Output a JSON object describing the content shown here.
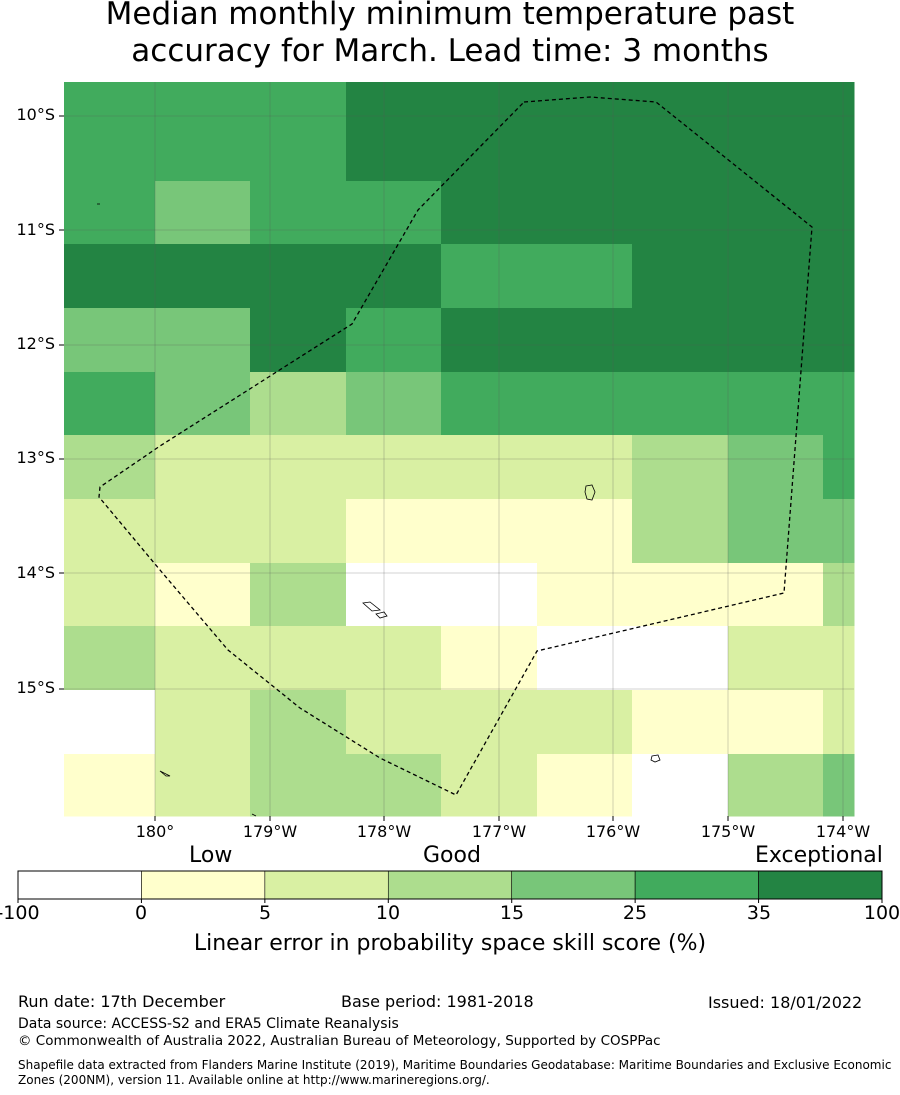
{
  "title": {
    "line1": "Median monthly minimum temperature past",
    "line2": "accuracy for March. Lead time: 3 months"
  },
  "map": {
    "lat_labels": [
      "10°S",
      "11°S",
      "12°S",
      "13°S",
      "14°S",
      "15°S"
    ],
    "lon_labels": [
      "180°",
      "179°W",
      "178°W",
      "177°W",
      "176°W",
      "175°W",
      "174°W"
    ],
    "grid_colors": [
      [
        "#41ab5d",
        "#41ab5d",
        "#41ab5d",
        "#238443",
        "#238443",
        "#238443",
        "#238443",
        "#238443",
        "#238443"
      ],
      [
        "#41ab5d",
        "#78c679",
        "#41ab5d",
        "#41ab5d",
        "#238443",
        "#238443",
        "#238443",
        "#238443",
        "#238443"
      ],
      [
        "#238443",
        "#238443",
        "#238443",
        "#238443",
        "#41ab5d",
        "#41ab5d",
        "#238443",
        "#238443",
        "#238443"
      ],
      [
        "#78c679",
        "#78c679",
        "#238443",
        "#41ab5d",
        "#238443",
        "#238443",
        "#238443",
        "#238443",
        "#238443"
      ],
      [
        "#41ab5d",
        "#78c679",
        "#addd8e",
        "#78c679",
        "#41ab5d",
        "#41ab5d",
        "#41ab5d",
        "#41ab5d",
        "#41ab5d"
      ],
      [
        "#addd8e",
        "#d9f0a3",
        "#d9f0a3",
        "#d9f0a3",
        "#d9f0a3",
        "#d9f0a3",
        "#addd8e",
        "#78c679",
        "#41ab5d"
      ],
      [
        "#d9f0a3",
        "#d9f0a3",
        "#d9f0a3",
        "#ffffcc",
        "#ffffcc",
        "#ffffcc",
        "#addd8e",
        "#78c679",
        "#78c679"
      ],
      [
        "#d9f0a3",
        "#ffffcc",
        "#addd8e",
        "#ffffff",
        "#ffffff",
        "#ffffcc",
        "#ffffcc",
        "#ffffcc",
        "#addd8e"
      ],
      [
        "#addd8e",
        "#d9f0a3",
        "#d9f0a3",
        "#d9f0a3",
        "#ffffcc",
        "#ffffff",
        "#ffffff",
        "#d9f0a3",
        "#d9f0a3"
      ],
      [
        "#ffffff",
        "#d9f0a3",
        "#addd8e",
        "#d9f0a3",
        "#d9f0a3",
        "#d9f0a3",
        "#ffffcc",
        "#ffffcc",
        "#d9f0a3"
      ],
      [
        "#ffffcc",
        "#d9f0a3",
        "#addd8e",
        "#addd8e",
        "#d9f0a3",
        "#ffffcc",
        "#ffffff",
        "#addd8e",
        "#78c679"
      ]
    ]
  },
  "legend": {
    "categories": [
      "Low",
      "Good",
      "Exceptional"
    ],
    "ticks": [
      "-100",
      "0",
      "5",
      "10",
      "15",
      "25",
      "35",
      "100"
    ],
    "colors": [
      "#ffffff",
      "#ffffcc",
      "#d9f0a3",
      "#addd8e",
      "#78c679",
      "#41ab5d",
      "#238443"
    ],
    "title": "Linear error in probability space skill score (%)"
  },
  "footer": {
    "run_date": "Run date: 17th December",
    "base_period": "Base period: 1981-2018",
    "issued": "Issued: 18/01/2022",
    "data_source": "Data source: ACCESS-S2 and ERA5 Climate Reanalysis",
    "copyright": "© Commonwealth of Australia 2022, Australian Bureau of Meteorology, Supported by COSPPac",
    "shapefile": "Shapefile data extracted from Flanders Marine Institute (2019), Maritime Boundaries Geodatabase: Maritime Boundaries and Exclusive Economic Zones (200NM), version 11. Available online at http://www.marineregions.org/."
  }
}
